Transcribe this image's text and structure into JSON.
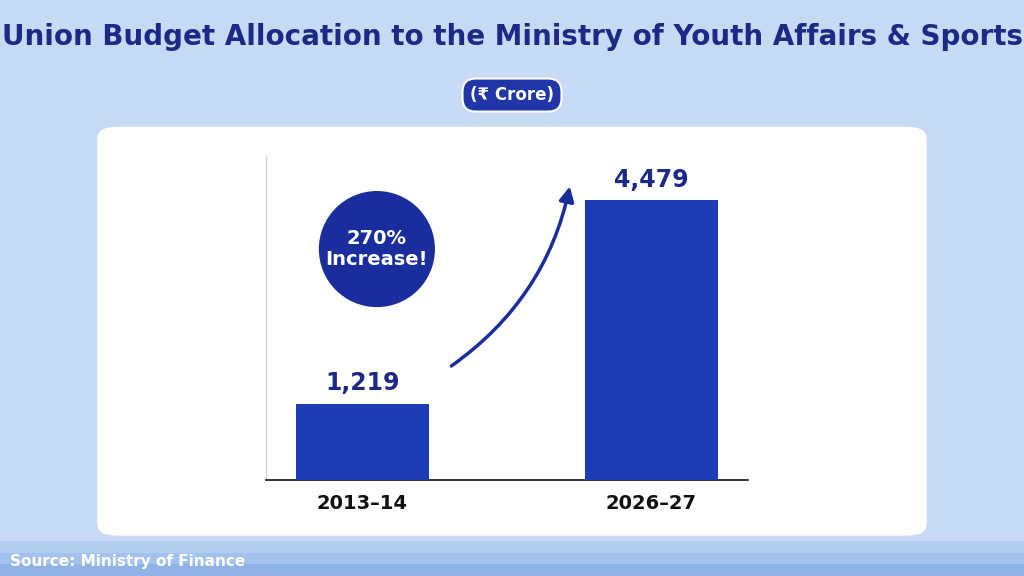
{
  "chart_data": {
    "type": "bar",
    "title": "Union Budget Allocation to the Ministry of Youth Affairs & Sports",
    "subtitle": "(₹ Crore)",
    "categories": [
      "2013–14",
      "2026–27"
    ],
    "values": [
      1219,
      4479
    ],
    "value_labels": [
      "1,219",
      "4,479"
    ],
    "data_labels": true,
    "color": "#1c3db5",
    "ylim": [
      0,
      5200
    ],
    "tick_labels": "x",
    "grid": false,
    "annotation": "270%\nIncrease!",
    "source": "Source: Ministry of Finance"
  }
}
